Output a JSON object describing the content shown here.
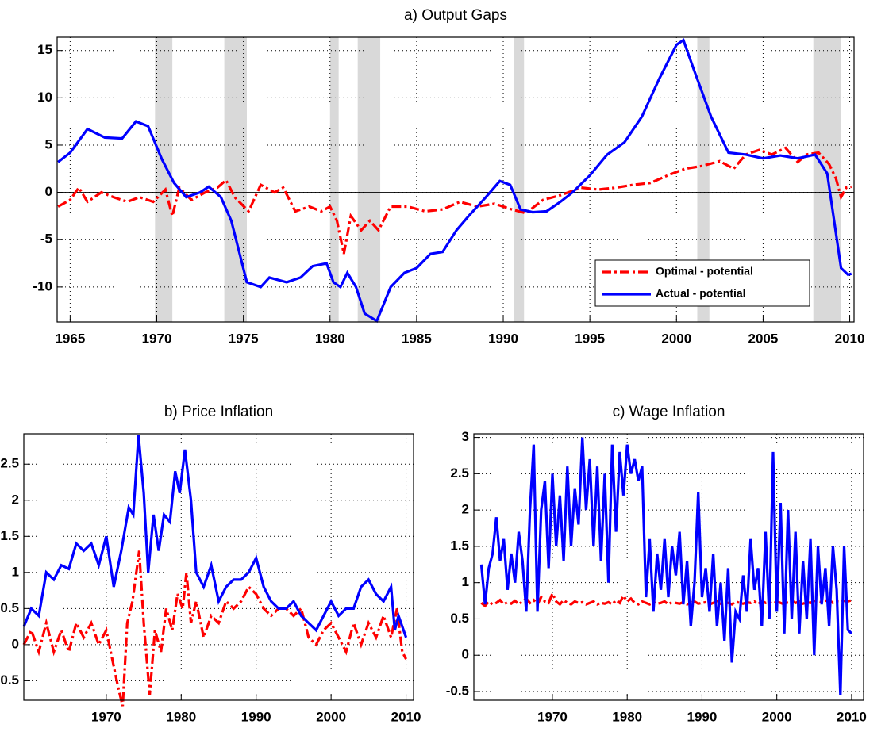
{
  "chart_data": [
    {
      "type": "line",
      "title": "a) Output Gaps",
      "xlim": [
        1964.25,
        2010.25
      ],
      "ylim": [
        -13.7,
        16.4
      ],
      "xticks": [
        1965,
        1970,
        1975,
        1980,
        1985,
        1990,
        1995,
        2000,
        2005,
        2010
      ],
      "yticks": [
        -10,
        -5,
        0,
        5,
        10,
        15
      ],
      "grid": true,
      "hline": 0,
      "legend": "lower right",
      "shaded_regions": [
        [
          1969.9,
          1970.9
        ],
        [
          1973.9,
          1975.2
        ],
        [
          1980.0,
          1980.5
        ],
        [
          1981.6,
          1982.9
        ],
        [
          1990.6,
          1991.2
        ],
        [
          2001.2,
          2001.9
        ],
        [
          2007.9,
          2009.5
        ]
      ],
      "shade_color": "#d9d9d9",
      "series": [
        {
          "name": "Optimal - potential",
          "color": "#ff0000",
          "style": "dashdot",
          "x": [
            1964.3,
            1965,
            1965.5,
            1966,
            1966.8,
            1967.5,
            1968.3,
            1969,
            1969.8,
            1970.5,
            1970.9,
            1971.3,
            1972,
            1972.8,
            1973.5,
            1974,
            1974.5,
            1975.3,
            1976,
            1976.8,
            1977.3,
            1978,
            1978.8,
            1979.5,
            1980,
            1980.4,
            1980.8,
            1981.2,
            1981.8,
            1982.3,
            1982.8,
            1983.5,
            1984.5,
            1985.5,
            1986.5,
            1987.5,
            1988.5,
            1989.5,
            1990.5,
            1991.3,
            1992.3,
            1993.3,
            1994.5,
            1995.5,
            1996.5,
            1997.5,
            1998.5,
            1999.5,
            2000.5,
            2001.5,
            2002.5,
            2003.3,
            2004,
            2004.8,
            2005.5,
            2006.3,
            2007,
            2007.5,
            2008.2,
            2008.8,
            2009.2,
            2009.5,
            2009.8,
            2010.1
          ],
          "values": [
            -1.5,
            -0.8,
            0.5,
            -1,
            0,
            -0.5,
            -1,
            -0.5,
            -1,
            0.3,
            -2.5,
            0.5,
            -0.8,
            0,
            0.5,
            1.3,
            -0.5,
            -2,
            0.8,
            0,
            0.5,
            -2,
            -1.5,
            -2,
            -1.5,
            -3,
            -6.5,
            -2.5,
            -4,
            -3,
            -4,
            -1.5,
            -1.5,
            -2,
            -1.8,
            -1,
            -1.5,
            -1.2,
            -1.8,
            -2.2,
            -0.8,
            -0.3,
            0.5,
            0.3,
            0.5,
            0.8,
            1,
            1.8,
            2.5,
            2.8,
            3.3,
            2.5,
            4,
            4.5,
            4,
            4.7,
            3.2,
            4,
            4.2,
            3,
            1.5,
            -0.5,
            0.5,
            0.6
          ]
        },
        {
          "name": "Actual - potential",
          "color": "#0000ff",
          "style": "solid",
          "x": [
            1964.3,
            1965,
            1966,
            1967,
            1968,
            1968.8,
            1969.5,
            1970.3,
            1971,
            1971.7,
            1972.5,
            1973,
            1973.7,
            1974.3,
            1975.2,
            1976,
            1976.5,
            1977.5,
            1978.3,
            1979,
            1979.8,
            1980.2,
            1980.6,
            1981,
            1981.5,
            1982,
            1982.7,
            1983.5,
            1984.3,
            1985,
            1985.8,
            1986.5,
            1987.3,
            1988,
            1989,
            1989.8,
            1990.4,
            1991,
            1991.7,
            1992.5,
            1993.3,
            1994,
            1995,
            1996,
            1997,
            1998,
            1999,
            2000,
            2000.4,
            2001,
            2002,
            2003,
            2004,
            2005,
            2006,
            2007,
            2008,
            2008.7,
            2009.1,
            2009.5,
            2009.9,
            2010.1
          ],
          "values": [
            3.2,
            4.2,
            6.7,
            5.8,
            5.7,
            7.5,
            7,
            3.5,
            1,
            -0.5,
            0,
            0.6,
            -0.5,
            -3,
            -9.5,
            -10,
            -9,
            -9.5,
            -9,
            -7.8,
            -7.5,
            -9.5,
            -10,
            -8.5,
            -10,
            -12.8,
            -13.6,
            -10,
            -8.5,
            -8,
            -6.5,
            -6.3,
            -4,
            -2.5,
            -0.5,
            1.2,
            0.8,
            -1.8,
            -2.1,
            -2,
            -1,
            0,
            1.8,
            4,
            5.3,
            8,
            12,
            15.6,
            16.1,
            13,
            8,
            4.2,
            4,
            3.6,
            3.9,
            3.6,
            4,
            2,
            -3,
            -8,
            -8.7,
            -8.6
          ]
        }
      ]
    },
    {
      "type": "line",
      "title": "b) Price Inflation",
      "xlim": [
        1959,
        2011
      ],
      "ylim": [
        -0.77,
        2.92
      ],
      "xticks": [
        1970,
        1980,
        1990,
        2000,
        2010
      ],
      "yticks": [
        -0.5,
        0,
        0.5,
        1,
        1.5,
        2,
        2.5
      ],
      "grid": true,
      "series": [
        {
          "color": "#ff0000",
          "style": "dashdot",
          "x": [
            1959,
            1960,
            1961,
            1962,
            1963,
            1964,
            1965,
            1966,
            1967,
            1968,
            1969,
            1970,
            1971,
            1971.6,
            1972.2,
            1972.8,
            1973.5,
            1974.4,
            1975,
            1975.8,
            1976.5,
            1977.3,
            1978,
            1978.8,
            1979.5,
            1980.2,
            1980.7,
            1981.3,
            1982,
            1983,
            1984,
            1985,
            1986,
            1987,
            1988,
            1989,
            1990,
            1991,
            1992,
            1993,
            1994,
            1995,
            1996,
            1997,
            1998,
            1999,
            2000,
            2001,
            2002,
            2003,
            2004,
            2005,
            2006,
            2007,
            2008,
            2008.8,
            2009.5,
            2010
          ],
          "values": [
            0,
            0.2,
            -0.1,
            0.3,
            -0.1,
            0.2,
            -0.1,
            0.3,
            0.1,
            0.3,
            0,
            0.2,
            -0.3,
            -0.6,
            -0.85,
            0.3,
            0.6,
            1.3,
            0.3,
            -0.7,
            0.2,
            -0.1,
            0.5,
            0.2,
            0.7,
            0.5,
            1,
            0.3,
            0.6,
            0.1,
            0.4,
            0.3,
            0.6,
            0.5,
            0.6,
            0.8,
            0.7,
            0.5,
            0.4,
            0.5,
            0.5,
            0.4,
            0.5,
            0.1,
            0,
            0.2,
            0.3,
            0.1,
            -0.1,
            0.3,
            0,
            0.3,
            0.1,
            0.4,
            0.1,
            0.5,
            -0.1,
            -0.2
          ]
        },
        {
          "color": "#0000ff",
          "style": "solid",
          "x": [
            1959,
            1960,
            1961,
            1962,
            1963,
            1964,
            1965,
            1966,
            1967,
            1968,
            1969,
            1970,
            1971,
            1972,
            1973,
            1973.6,
            1974.3,
            1975,
            1975.6,
            1976.3,
            1977,
            1977.7,
            1978.5,
            1979.2,
            1979.8,
            1980.5,
            1981.3,
            1982,
            1983,
            1984,
            1985,
            1986,
            1987,
            1988,
            1989,
            1990,
            1991,
            1992,
            1993,
            1994,
            1995,
            1996,
            1997,
            1998,
            1999,
            2000,
            2001,
            2002,
            2003,
            2004,
            2005,
            2006,
            2007,
            2008,
            2008.5,
            2009,
            2010
          ],
          "values": [
            0.25,
            0.5,
            0.4,
            1,
            0.9,
            1.1,
            1.05,
            1.4,
            1.3,
            1.4,
            1.1,
            1.5,
            0.8,
            1.3,
            1.9,
            1.8,
            2.9,
            2.1,
            1,
            1.8,
            1.3,
            1.8,
            1.7,
            2.4,
            2.1,
            2.7,
            2,
            1,
            0.8,
            1.1,
            0.6,
            0.8,
            0.9,
            0.9,
            1,
            1.2,
            0.8,
            0.6,
            0.5,
            0.5,
            0.6,
            0.4,
            0.3,
            0.2,
            0.4,
            0.6,
            0.4,
            0.5,
            0.5,
            0.8,
            0.9,
            0.7,
            0.6,
            0.8,
            0.2,
            0.4,
            0.1
          ]
        }
      ]
    },
    {
      "type": "line",
      "title": "c) Wage Inflation",
      "xlim": [
        1959.5,
        2011.6
      ],
      "ylim": [
        -0.62,
        3.05
      ],
      "xticks": [
        1970,
        1980,
        1990,
        2000,
        2010
      ],
      "yticks": [
        -0.5,
        0,
        0.5,
        1,
        1.5,
        2,
        2.5,
        3
      ],
      "grid": true,
      "series": [
        {
          "color": "#ff0000",
          "style": "dashdot",
          "x": [
            1960.5,
            1961,
            1961.5,
            1962,
            1962.5,
            1963,
            1963.5,
            1964,
            1964.5,
            1965,
            1965.5,
            1966,
            1966.5,
            1967,
            1967.5,
            1968,
            1968.5,
            1969,
            1969.5,
            1970,
            1970.5,
            1971,
            1971.5,
            1972,
            1972.5,
            1973,
            1973.5,
            1974,
            1974.5,
            1975,
            1975.5,
            1976,
            1976.5,
            1977,
            1977.5,
            1978,
            1978.5,
            1979,
            1979.5,
            1980,
            1980.5,
            1981,
            1981.5,
            1982,
            1982.5,
            1983,
            1983.5,
            1984,
            1984.5,
            1985,
            1985.5,
            1986,
            1986.5,
            1987,
            1987.5,
            1988,
            1988.5,
            1989,
            1989.5,
            1990,
            1990.5,
            1991,
            1991.5,
            1992,
            1992.5,
            1993,
            1993.5,
            1994,
            1994.5,
            1995,
            1995.5,
            1996,
            1996.5,
            1997,
            1997.5,
            1998,
            1998.5,
            1999,
            1999.5,
            2000,
            2000.5,
            2001,
            2001.5,
            2002,
            2002.5,
            2003,
            2003.5,
            2004,
            2004.5,
            2005,
            2005.5,
            2006,
            2006.5,
            2007,
            2007.5,
            2008,
            2008.5,
            2009,
            2009.5,
            2010
          ],
          "values": [
            0.72,
            0.68,
            0.74,
            0.7,
            0.72,
            0.76,
            0.7,
            0.73,
            0.71,
            0.75,
            0.7,
            0.74,
            0.78,
            0.72,
            0.76,
            0.7,
            0.8,
            0.74,
            0.72,
            0.85,
            0.74,
            0.7,
            0.76,
            0.72,
            0.7,
            0.74,
            0.72,
            0.73,
            0.7,
            0.72,
            0.74,
            0.7,
            0.72,
            0.71,
            0.73,
            0.7,
            0.76,
            0.72,
            0.82,
            0.74,
            0.78,
            0.72,
            0.7,
            0.74,
            0.72,
            0.7,
            0.73,
            0.71,
            0.72,
            0.74,
            0.7,
            0.73,
            0.72,
            0.71,
            0.73,
            0.7,
            0.72,
            0.74,
            0.71,
            0.72,
            0.73,
            0.7,
            0.72,
            0.74,
            0.71,
            0.73,
            0.72,
            0.7,
            0.74,
            0.72,
            0.71,
            0.73,
            0.72,
            0.74,
            0.7,
            0.75,
            0.72,
            0.73,
            0.71,
            0.74,
            0.72,
            0.7,
            0.73,
            0.75,
            0.72,
            0.74,
            0.71,
            0.73,
            0.72,
            0.75,
            0.74,
            0.73,
            0.75,
            0.76,
            0.72,
            0.74,
            0.73,
            0.75,
            0.74,
            0.76
          ]
        },
        {
          "color": "#0000ff",
          "style": "solid",
          "x": [
            1960.5,
            1961,
            1961.5,
            1962,
            1962.5,
            1963,
            1963.5,
            1964,
            1964.5,
            1965,
            1965.5,
            1966,
            1966.5,
            1967,
            1967.5,
            1968,
            1968.5,
            1969,
            1969.5,
            1970,
            1970.5,
            1971,
            1971.5,
            1972,
            1972.5,
            1973,
            1973.5,
            1974,
            1974.5,
            1975,
            1975.5,
            1976,
            1976.5,
            1977,
            1977.5,
            1978,
            1978.5,
            1979,
            1979.5,
            1980,
            1980.5,
            1981,
            1981.5,
            1982,
            1982.5,
            1983,
            1983.5,
            1984,
            1984.5,
            1985,
            1985.5,
            1986,
            1986.5,
            1987,
            1987.5,
            1988,
            1988.5,
            1989,
            1989.5,
            1990,
            1990.5,
            1991,
            1991.5,
            1992,
            1992.5,
            1993,
            1993.5,
            1994,
            1994.5,
            1995,
            1995.5,
            1996,
            1996.5,
            1997,
            1997.5,
            1998,
            1998.5,
            1999,
            1999.5,
            2000,
            2000.5,
            2001,
            2001.5,
            2002,
            2002.5,
            2003,
            2003.5,
            2004,
            2004.5,
            2005,
            2005.5,
            2006,
            2006.5,
            2007,
            2007.5,
            2008,
            2008.5,
            2009,
            2009.5,
            2010
          ],
          "values": [
            1.25,
            0.7,
            1.2,
            1.4,
            1.9,
            1.3,
            1.6,
            0.9,
            1.4,
            1,
            1.7,
            1.3,
            0.6,
            2,
            2.9,
            0.6,
            2,
            2.4,
            1.2,
            2.5,
            1.5,
            2.2,
            1.3,
            2.6,
            1.5,
            2.3,
            1.8,
            3,
            2,
            2.7,
            1.5,
            2.6,
            1.3,
            2.5,
            1,
            2.9,
            1.7,
            2.8,
            2.2,
            2.9,
            2.5,
            2.7,
            2.4,
            2.6,
            0.8,
            1.6,
            0.6,
            1.4,
            0.9,
            1.6,
            0.8,
            1.5,
            1.1,
            1.7,
            0.7,
            1.3,
            0.4,
            1,
            2.25,
            0.8,
            1.2,
            0.6,
            1.4,
            0.4,
            1,
            0.2,
            1.2,
            -0.1,
            0.6,
            0.5,
            1.1,
            0.6,
            1.6,
            0.9,
            1.2,
            0.4,
            1.7,
            0.5,
            2.8,
            0.6,
            2.1,
            0.3,
            2,
            0.5,
            1.7,
            0.3,
            1.3,
            0.5,
            1.6,
            0,
            1.5,
            0.7,
            1.2,
            0.4,
            1.5,
            0.9,
            -0.55,
            1.5,
            0.35,
            0.3
          ]
        }
      ]
    }
  ]
}
